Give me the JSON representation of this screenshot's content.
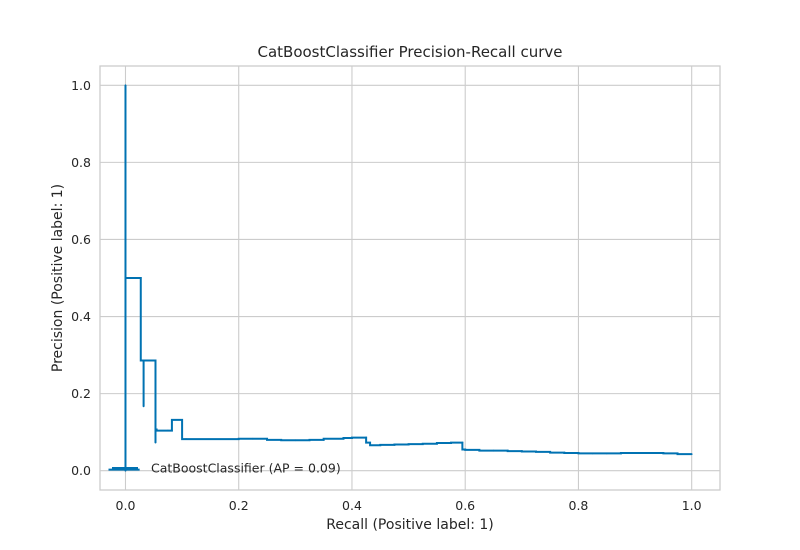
{
  "chart_data": {
    "type": "line",
    "drawstyle": "steps-post",
    "title": "CatBoostClassifier Precision-Recall curve",
    "xlabel": "Recall (Positive label: 1)",
    "ylabel": "Precision (Positive label: 1)",
    "xlim": [
      -0.045,
      1.05
    ],
    "ylim": [
      -0.05,
      1.05
    ],
    "xticks": [
      0.0,
      0.2,
      0.4,
      0.6,
      0.8,
      1.0
    ],
    "xtick_labels": [
      "0.0",
      "0.2",
      "0.4",
      "0.6",
      "0.8",
      "1.0"
    ],
    "yticks": [
      0.0,
      0.2,
      0.4,
      0.6,
      0.8,
      1.0
    ],
    "yticks_labels": [
      "0.0",
      "0.2",
      "0.4",
      "0.6",
      "0.8",
      "1.0"
    ],
    "grid": true,
    "legend": {
      "position": "lower-left",
      "entries": [
        "CatBoostClassifier (AP = 0.09)"
      ]
    },
    "series": [
      {
        "name": "CatBoostClassifier (AP = 0.09)",
        "color": "#0072b2",
        "points": [
          [
            1.0,
            0.043
          ],
          [
            0.975,
            0.045
          ],
          [
            0.95,
            0.046
          ],
          [
            0.925,
            0.046
          ],
          [
            0.9,
            0.046
          ],
          [
            0.875,
            0.045
          ],
          [
            0.85,
            0.045
          ],
          [
            0.825,
            0.045
          ],
          [
            0.8,
            0.046
          ],
          [
            0.775,
            0.047
          ],
          [
            0.75,
            0.049
          ],
          [
            0.725,
            0.05
          ],
          [
            0.7,
            0.051
          ],
          [
            0.675,
            0.052
          ],
          [
            0.65,
            0.052
          ],
          [
            0.625,
            0.054
          ],
          [
            0.6,
            0.055
          ],
          [
            0.595,
            0.073
          ],
          [
            0.575,
            0.072
          ],
          [
            0.55,
            0.07
          ],
          [
            0.525,
            0.069
          ],
          [
            0.5,
            0.068
          ],
          [
            0.475,
            0.067
          ],
          [
            0.45,
            0.066
          ],
          [
            0.432,
            0.073
          ],
          [
            0.425,
            0.086
          ],
          [
            0.4,
            0.085
          ],
          [
            0.385,
            0.083
          ],
          [
            0.35,
            0.08
          ],
          [
            0.325,
            0.079
          ],
          [
            0.3,
            0.079
          ],
          [
            0.275,
            0.08
          ],
          [
            0.25,
            0.083
          ],
          [
            0.225,
            0.083
          ],
          [
            0.2,
            0.082
          ],
          [
            0.107,
            0.082
          ],
          [
            0.1,
            0.132
          ],
          [
            0.082,
            0.104
          ],
          [
            0.075,
            0.104
          ],
          [
            0.055,
            0.107
          ],
          [
            0.053,
            0.073
          ],
          [
            0.053,
            0.286
          ],
          [
            0.032,
            0.167
          ],
          [
            0.032,
            0.286
          ],
          [
            0.027,
            0.5
          ],
          [
            0.002,
            0.5
          ],
          [
            0.0,
            1.0
          ],
          [
            0.0,
            0.0
          ]
        ]
      }
    ],
    "baseline": {
      "x": [
        -0.03,
        0.025
      ],
      "y": [
        0.003,
        0.003
      ]
    }
  }
}
